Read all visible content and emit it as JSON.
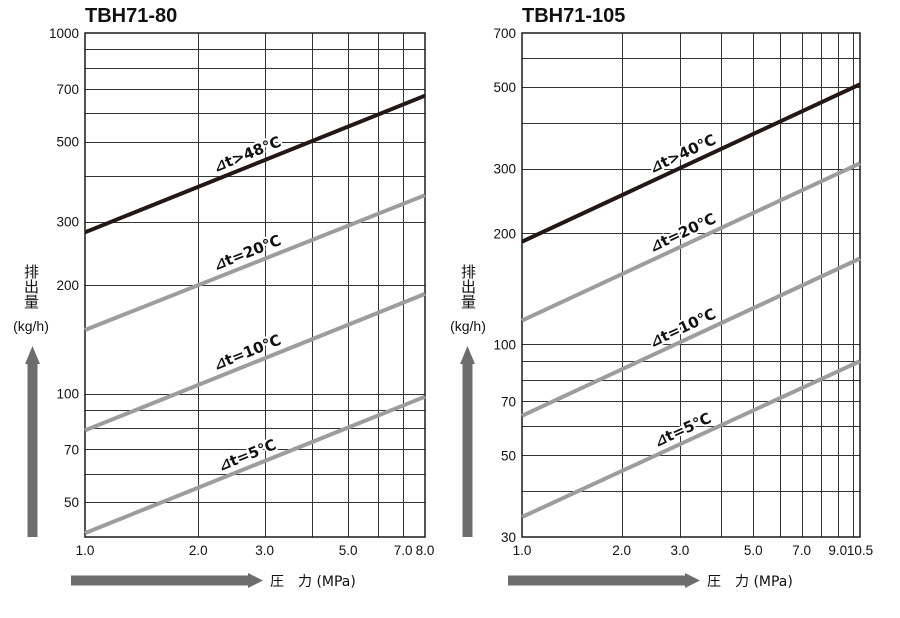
{
  "colors": {
    "background": "#ffffff",
    "grid": "#333333",
    "frame": "#1a1a1a",
    "axis_arrow": "#6d6d6d"
  },
  "chart_data": [
    {
      "type": "line",
      "title": "TBH71-80",
      "xlabel": "圧　力 (MPa)",
      "ylabel": "排出量",
      "yunit": "(kg/h)",
      "x_scale": "log",
      "y_scale": "log",
      "xlim": [
        1.0,
        8.0
      ],
      "ylim": [
        40,
        1000
      ],
      "x_tick_labels": [
        "1.0",
        "2.0",
        "3.0",
        "5.0",
        "7.0",
        "8.0"
      ],
      "y_tick_labels": [
        "1000",
        "700",
        "500",
        "300",
        "200",
        "100",
        "70",
        "50"
      ],
      "grid": true,
      "series": [
        {
          "name": "⊿t>48℃",
          "x": [
            1.0,
            8.0
          ],
          "y": [
            280,
            670
          ],
          "color": "#231815"
        },
        {
          "name": "⊿t=20℃",
          "x": [
            1.0,
            8.0
          ],
          "y": [
            150,
            355
          ],
          "color": "#9d9d9d"
        },
        {
          "name": "⊿t=10℃",
          "x": [
            1.0,
            8.0
          ],
          "y": [
            79,
            189
          ],
          "color": "#9d9d9d"
        },
        {
          "name": "⊿t=5℃",
          "x": [
            1.0,
            8.0
          ],
          "y": [
            41,
            98
          ],
          "color": "#9d9d9d"
        }
      ]
    },
    {
      "type": "line",
      "title": "TBH71-105",
      "xlabel": "圧　力 (MPa)",
      "ylabel": "排出量",
      "yunit": "(kg/h)",
      "x_scale": "log",
      "y_scale": "log",
      "xlim": [
        1.0,
        10.5
      ],
      "ylim": [
        30,
        700
      ],
      "x_tick_labels": [
        "1.0",
        "2.0",
        "3.0",
        "5.0",
        "7.0",
        "9.0",
        "10.5"
      ],
      "y_tick_labels": [
        "700",
        "500",
        "300",
        "200",
        "100",
        "70",
        "50",
        "30"
      ],
      "grid": true,
      "series": [
        {
          "name": "⊿t>40℃",
          "x": [
            1.0,
            10.5
          ],
          "y": [
            190,
            508
          ],
          "color": "#231815"
        },
        {
          "name": "⊿t=20℃",
          "x": [
            1.0,
            10.5
          ],
          "y": [
            116,
            310
          ],
          "color": "#9d9d9d"
        },
        {
          "name": "⊿t=10℃",
          "x": [
            1.0,
            10.5
          ],
          "y": [
            64,
            171
          ],
          "color": "#9d9d9d"
        },
        {
          "name": "⊿t=5℃",
          "x": [
            1.0,
            10.5
          ],
          "y": [
            34,
            90
          ],
          "color": "#9d9d9d"
        }
      ]
    }
  ]
}
